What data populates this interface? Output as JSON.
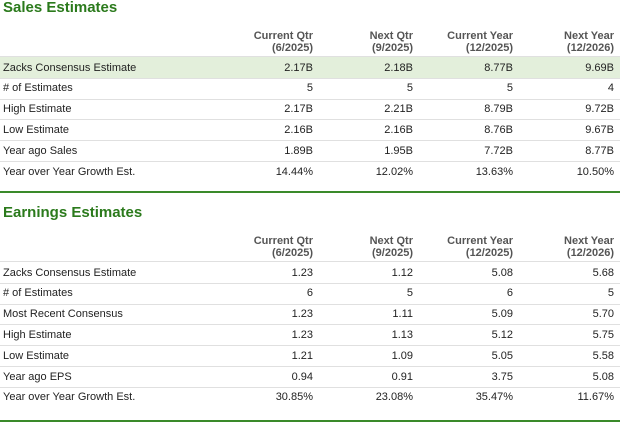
{
  "sections": [
    {
      "title": "Sales Estimates",
      "headers": [
        [
          "Current Qtr",
          "(6/2025)"
        ],
        [
          "Next Qtr",
          "(9/2025)"
        ],
        [
          "Current Year",
          "(12/2025)"
        ],
        [
          "Next Year",
          "(12/2026)"
        ]
      ],
      "rows": [
        [
          "Zacks Consensus Estimate",
          "2.17B",
          "2.18B",
          "8.77B",
          "9.69B"
        ],
        [
          "# of Estimates",
          "5",
          "5",
          "5",
          "4"
        ],
        [
          "High Estimate",
          "2.17B",
          "2.21B",
          "8.79B",
          "9.72B"
        ],
        [
          "Low Estimate",
          "2.16B",
          "2.16B",
          "8.76B",
          "9.67B"
        ],
        [
          "Year ago Sales",
          "1.89B",
          "1.95B",
          "7.72B",
          "8.77B"
        ],
        [
          "Year over Year Growth Est.",
          "14.44%",
          "12.02%",
          "13.63%",
          "10.50%"
        ]
      ]
    },
    {
      "title": "Earnings Estimates",
      "headers": [
        [
          "Current Qtr",
          "(6/2025)"
        ],
        [
          "Next Qtr",
          "(9/2025)"
        ],
        [
          "Current Year",
          "(12/2025)"
        ],
        [
          "Next Year",
          "(12/2026)"
        ]
      ],
      "rows": [
        [
          "Zacks Consensus Estimate",
          "1.23",
          "1.12",
          "5.08",
          "5.68"
        ],
        [
          "# of Estimates",
          "6",
          "5",
          "6",
          "5"
        ],
        [
          "Most Recent Consensus",
          "1.23",
          "1.11",
          "5.09",
          "5.70"
        ],
        [
          "High Estimate",
          "1.23",
          "1.13",
          "5.12",
          "5.75"
        ],
        [
          "Low Estimate",
          "1.21",
          "1.09",
          "5.05",
          "5.58"
        ],
        [
          "Year ago EPS",
          "0.94",
          "0.91",
          "3.75",
          "5.08"
        ],
        [
          "Year over Year Growth Est.",
          "30.85%",
          "23.08%",
          "35.47%",
          "11.67%"
        ]
      ]
    }
  ]
}
